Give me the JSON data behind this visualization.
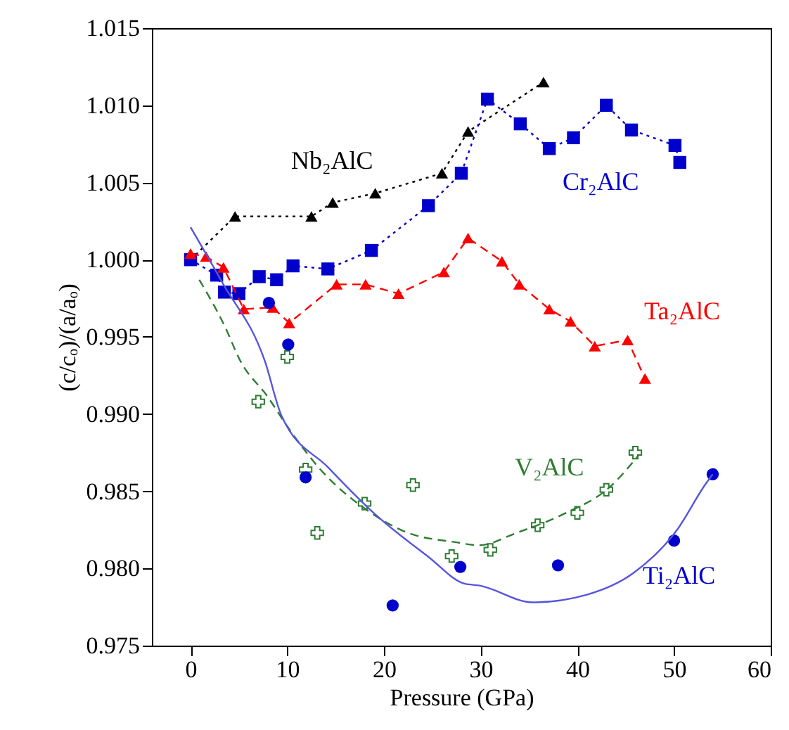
{
  "chart_data": {
    "type": "line",
    "xlabel": "Pressure (GPa)",
    "ylabel": "(c/cₒ)/(a/aₒ)",
    "xlim": [
      -4,
      60
    ],
    "xticks": [
      0,
      10,
      20,
      30,
      40,
      50,
      60
    ],
    "ylim": [
      0.975,
      1.015
    ],
    "yticks": [
      {
        "value": 0.975,
        "label": "0.975"
      },
      {
        "value": 0.98,
        "label": "0.980"
      },
      {
        "value": 0.985,
        "label": "0.985"
      },
      {
        "value": 0.99,
        "label": "0.990"
      },
      {
        "value": 0.995,
        "label": "0.995"
      },
      {
        "value": 1,
        "label": "1.000"
      },
      {
        "value": 1.005,
        "label": "1.005"
      },
      {
        "value": 1.01,
        "label": "1.010"
      },
      {
        "value": 1.015,
        "label": "1.015"
      }
    ],
    "series": [
      {
        "name": "Nb₂AlC",
        "color": "#000000",
        "marker": "triangle",
        "line_style": "dotted",
        "x": [
          0,
          4.6,
          12.5,
          14.7,
          19.1,
          26.0,
          28.7,
          36.5
        ],
        "values": [
          1.0,
          1.0028,
          1.0028,
          1.0037,
          1.0043,
          1.0056,
          1.0083,
          1.0115
        ]
      },
      {
        "name": "Cr₂AlC",
        "color": "#0000cc",
        "marker": "square",
        "line_style": "dotted",
        "x": [
          0,
          2.7,
          3.5,
          5.0,
          7.1,
          8.9,
          10.6,
          14.2,
          18.7,
          24.6,
          28.0,
          30.7,
          34.1,
          37.1,
          39.6,
          43.0,
          45.6,
          50.1,
          50.6
        ],
        "values": [
          1.0,
          0.999,
          0.9979,
          0.9978,
          0.9989,
          0.9987,
          0.9996,
          0.9994,
          1.0006,
          1.0035,
          1.0056,
          1.0104,
          1.0088,
          1.0072,
          1.0079,
          1.01,
          1.0084,
          1.0074,
          1.0063
        ]
      },
      {
        "name": "Ta₂AlC",
        "color": "#ff0000",
        "marker": "triangle",
        "line_style": "dashed",
        "x": [
          0,
          1.6,
          3.4,
          5.5,
          8.5,
          10.2,
          15.1,
          18.1,
          21.5,
          26.2,
          28.7,
          32.2,
          34.0,
          37.1,
          39.3,
          41.8,
          45.2,
          47.0
        ],
        "values": [
          1.0004,
          1.0002,
          0.9995,
          0.9968,
          0.9969,
          0.9959,
          0.9984,
          0.9984,
          0.9978,
          0.9992,
          1.0014,
          0.9999,
          0.9984,
          0.9968,
          0.996,
          0.9944,
          0.9948,
          0.9923
        ]
      },
      {
        "name": "V₂AlC",
        "type": "scatter",
        "color": "#2e7d32",
        "marker": "cross",
        "x": [
          7.0,
          10.0,
          11.9,
          13.1,
          18.0,
          23.0,
          27.0,
          31.0,
          35.9,
          40.0,
          43.0,
          46.0
        ],
        "values": [
          0.9908,
          0.9937,
          0.9864,
          0.9823,
          0.9842,
          0.9854,
          0.9808,
          0.9812,
          0.9828,
          0.9836,
          0.9851,
          0.9875
        ]
      },
      {
        "name": "Ti₂AlC",
        "type": "scatter",
        "color": "#0000cc",
        "marker": "circle",
        "x": [
          8.1,
          10.1,
          11.9,
          20.9,
          27.9,
          38.0,
          50.0,
          54.0
        ],
        "values": [
          0.9972,
          0.9945,
          0.9859,
          0.9776,
          0.9801,
          0.9802,
          0.9818,
          0.9861
        ]
      },
      {
        "color": "#2e7d32",
        "marker": "none",
        "line_style": "dashed",
        "x": [
          0.9,
          3.6,
          5.1,
          8.0,
          9.9,
          13.3,
          18.2,
          22.5,
          27.4,
          29.8,
          33.7,
          38.5,
          43.4,
          46.3
        ],
        "values": [
          0.9987,
          0.9956,
          0.9935,
          0.9911,
          0.9893,
          0.9865,
          0.9838,
          0.9823,
          0.9817,
          0.9815,
          0.9823,
          0.9835,
          0.9853,
          0.9873
        ]
      },
      {
        "color": "#5555dd",
        "marker": "none",
        "line_style": "solid",
        "x": [
          0,
          3.3,
          7.7,
          9.4,
          14.3,
          19.1,
          24.5,
          28.4,
          29.8,
          35.4,
          41.0,
          45.8,
          50.2,
          53.3,
          54.0
        ],
        "values": [
          1.0021,
          0.9985,
          0.9934,
          0.9899,
          0.9865,
          0.9835,
          0.9808,
          0.979,
          0.9789,
          0.9778,
          0.9783,
          0.9797,
          0.9824,
          0.9855,
          0.9861
        ]
      }
    ]
  }
}
